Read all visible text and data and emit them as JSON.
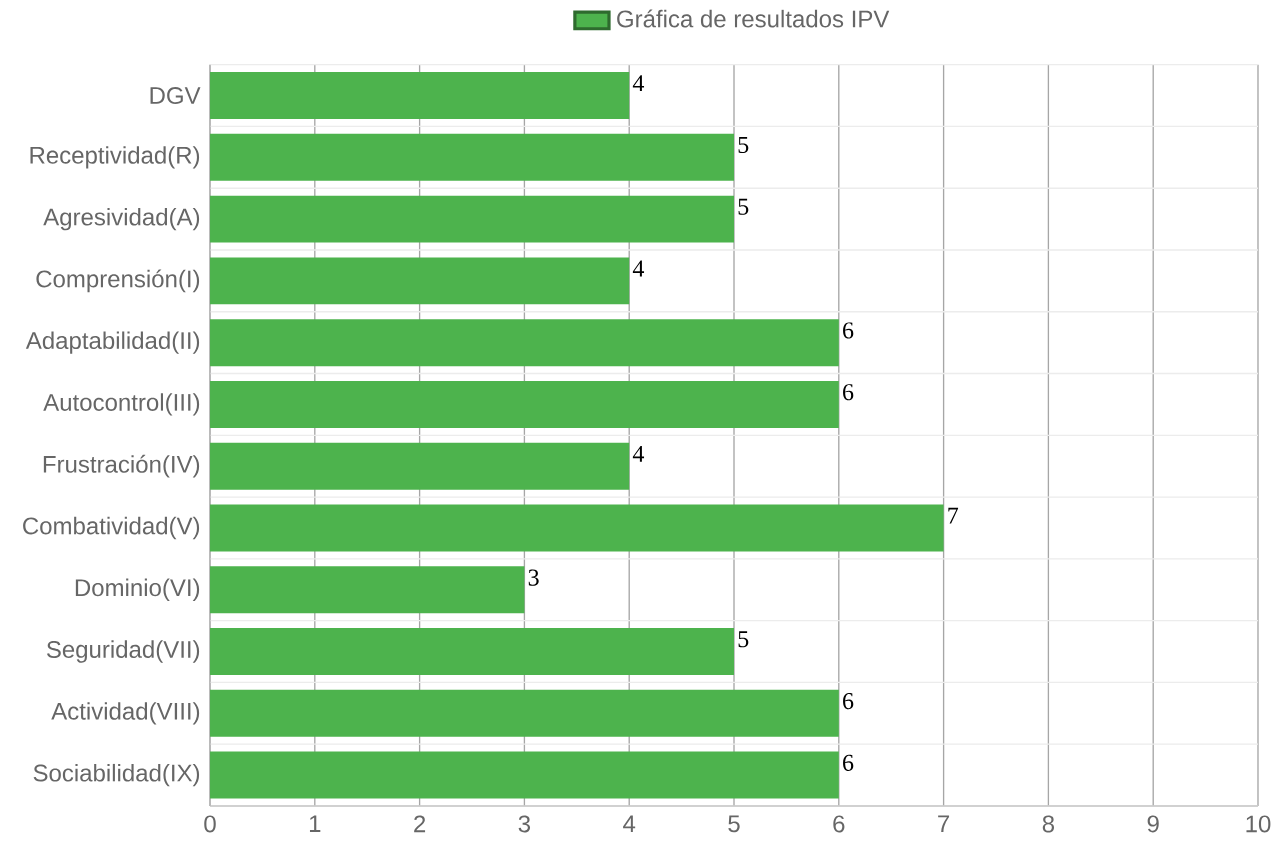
{
  "chart_data": {
    "type": "bar",
    "orientation": "horizontal",
    "categories": [
      "DGV",
      "Receptividad(R)",
      "Agresividad(A)",
      "Comprensión(I)",
      "Adaptabilidad(II)",
      "Autocontrol(III)",
      "Frustración(IV)",
      "Combatividad(V)",
      "Dominio(VI)",
      "Seguridad(VII)",
      "Actividad(VIII)",
      "Sociabilidad(IX)"
    ],
    "series": [
      {
        "name": "Gráfica de resultados IPV",
        "color": "#4db34d",
        "values": [
          4,
          5,
          5,
          4,
          6,
          6,
          4,
          7,
          3,
          5,
          6,
          6
        ]
      }
    ],
    "xlim": [
      0,
      10
    ],
    "xticks": [
      0,
      1,
      2,
      3,
      4,
      5,
      6,
      7,
      8,
      9,
      10
    ],
    "grid": true,
    "legend": "top",
    "data_labels": true
  }
}
